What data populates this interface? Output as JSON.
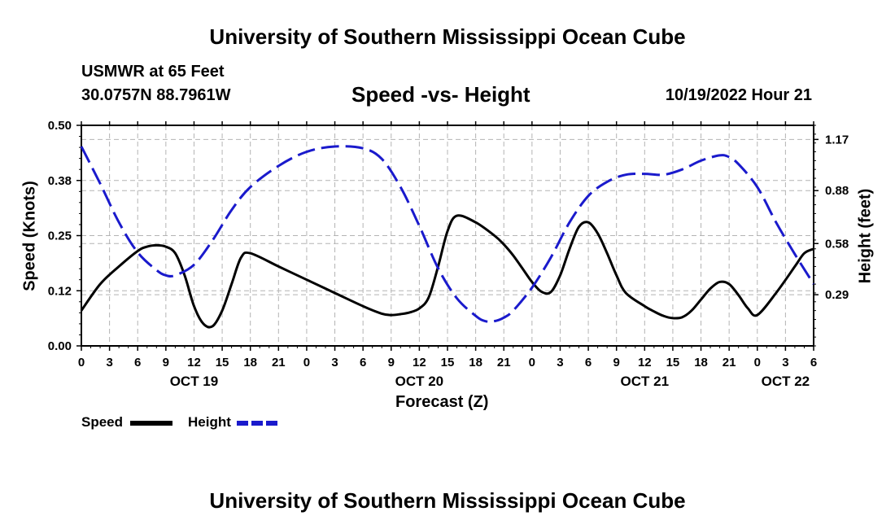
{
  "page": {
    "title": "University of Southern Mississippi Ocean Cube",
    "station": "USMWR at 65 Feet",
    "coords": "30.0757N  88.7961W",
    "subtitle": "Speed -vs- Height",
    "date": "10/19/2022 Hour 21",
    "footer_title": "University of Southern Mississippi Ocean Cube"
  },
  "legend": {
    "speed_label": "Speed",
    "height_label": "Height"
  },
  "colors": {
    "speed": "#000000",
    "height": "#1a1acc",
    "grid": "#b4b4b4"
  },
  "chart_data": {
    "type": "line",
    "title": "Speed -vs- Height",
    "xlabel": "Forecast (Z)",
    "ylabel": "Speed (Knots)",
    "y2label": "Height (feet)",
    "xlim": [
      0,
      78
    ],
    "ylim": [
      0,
      0.5
    ],
    "y2lim": [
      0,
      1.25
    ],
    "x_ticks": [
      0,
      3,
      6,
      9,
      12,
      15,
      18,
      21,
      24,
      27,
      30,
      33,
      36,
      39,
      42,
      45,
      48,
      51,
      54,
      57,
      60,
      63,
      66,
      69,
      72,
      75,
      78
    ],
    "x_tick_labels": [
      "0",
      "3",
      "6",
      "9",
      "12",
      "15",
      "18",
      "21",
      "0",
      "3",
      "6",
      "9",
      "12",
      "15",
      "18",
      "21",
      "0",
      "3",
      "6",
      "9",
      "12",
      "15",
      "18",
      "21",
      "0",
      "3",
      "6"
    ],
    "day_labels": [
      {
        "x": 12,
        "label": "OCT 19"
      },
      {
        "x": 36,
        "label": "OCT 20"
      },
      {
        "x": 60,
        "label": "OCT 21"
      },
      {
        "x": 75,
        "label": "OCT 22"
      }
    ],
    "y_ticks": [
      0.0,
      0.125,
      0.25,
      0.375,
      0.5
    ],
    "y_tick_labels": [
      "0.00",
      "0.12",
      "0.25",
      "0.38",
      "0.50"
    ],
    "y2_ticks": [
      0.29,
      0.58,
      0.88,
      1.17
    ],
    "y2_tick_labels": [
      "0.29",
      "0.58",
      "0.88",
      "1.17"
    ],
    "series": [
      {
        "name": "Speed",
        "axis": "left",
        "style": "solid",
        "x": [
          0,
          2,
          4,
          6,
          7,
          8,
          9,
          10,
          11,
          12,
          13,
          14,
          15,
          16,
          17,
          18,
          21,
          24,
          27,
          30,
          32,
          33,
          34,
          35,
          36,
          37,
          38,
          39,
          40,
          42,
          44,
          45,
          46,
          47,
          48,
          49,
          50,
          51,
          52,
          53,
          54,
          55,
          56,
          57,
          58,
          60,
          61,
          62,
          63,
          64,
          65,
          66,
          67,
          68,
          69,
          70,
          71,
          72,
          74,
          76,
          77,
          78
        ],
        "values": [
          0.08,
          0.14,
          0.18,
          0.215,
          0.225,
          0.228,
          0.225,
          0.21,
          0.16,
          0.09,
          0.05,
          0.045,
          0.08,
          0.14,
          0.2,
          0.21,
          0.18,
          0.15,
          0.12,
          0.09,
          0.073,
          0.07,
          0.072,
          0.076,
          0.085,
          0.11,
          0.18,
          0.26,
          0.295,
          0.28,
          0.25,
          0.23,
          0.205,
          0.175,
          0.145,
          0.123,
          0.122,
          0.16,
          0.22,
          0.27,
          0.28,
          0.255,
          0.21,
          0.16,
          0.12,
          0.09,
          0.078,
          0.068,
          0.063,
          0.065,
          0.08,
          0.105,
          0.13,
          0.145,
          0.14,
          0.115,
          0.085,
          0.07,
          0.12,
          0.18,
          0.21,
          0.22
        ]
      },
      {
        "name": "Height",
        "axis": "right",
        "style": "dashed",
        "x": [
          0,
          2,
          4,
          6,
          8,
          9,
          10,
          12,
          14,
          16,
          18,
          21,
          24,
          27,
          30,
          32,
          34,
          36,
          38,
          40,
          42,
          43,
          44,
          45,
          46,
          48,
          50,
          52,
          54,
          56,
          58,
          60,
          62,
          64,
          66,
          68,
          69,
          70,
          72,
          74,
          76,
          78
        ],
        "values": [
          1.13,
          0.92,
          0.7,
          0.53,
          0.43,
          0.4,
          0.4,
          0.46,
          0.6,
          0.77,
          0.9,
          1.02,
          1.1,
          1.13,
          1.12,
          1.06,
          0.9,
          0.68,
          0.44,
          0.27,
          0.17,
          0.14,
          0.14,
          0.16,
          0.2,
          0.33,
          0.5,
          0.7,
          0.85,
          0.93,
          0.97,
          0.975,
          0.97,
          1.0,
          1.05,
          1.08,
          1.07,
          1.03,
          0.9,
          0.7,
          0.52,
          0.35
        ]
      }
    ]
  }
}
